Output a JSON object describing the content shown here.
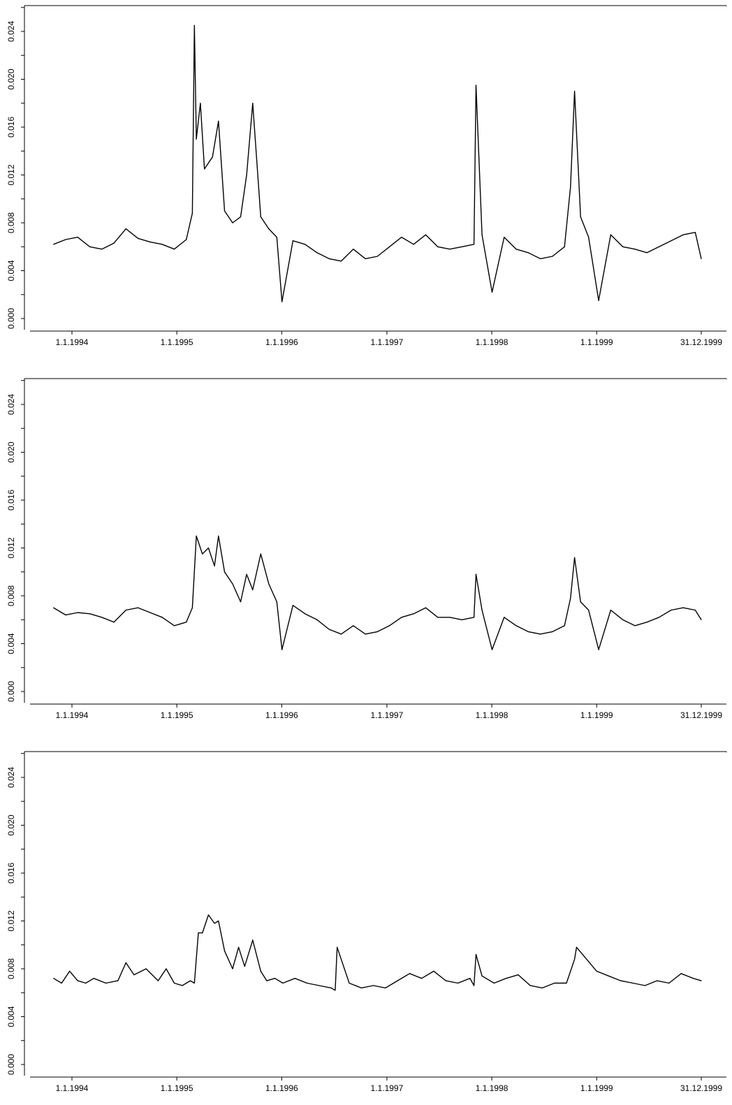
{
  "chart_data": [
    {
      "type": "line",
      "title": "",
      "xlabel": "",
      "ylabel": "",
      "ylim": [
        0,
        0.026
      ],
      "grid": false,
      "x_ticks": [
        "1.1.1994",
        "1.1.1995",
        "1.1.1996",
        "1.1.1997",
        "1.1.1998",
        "1.1.1999",
        "31.12.1999"
      ],
      "y_ticks": [
        "0.000",
        "0.004",
        "0.008",
        "0.012",
        "0.016",
        "0.020",
        "0.024"
      ],
      "series": [
        {
          "x": [
            "1993-10-29",
            "1993-12-10",
            "1994-01-21",
            "1994-03-04",
            "1994-04-15",
            "1994-05-27",
            "1994-07-08",
            "1994-08-19",
            "1994-09-30",
            "1994-11-11",
            "1994-12-23",
            "1995-02-03",
            "1995-02-24",
            "1995-03-03",
            "1995-03-10",
            "1995-03-24",
            "1995-04-07",
            "1995-05-05",
            "1995-05-26",
            "1995-06-16",
            "1995-07-14",
            "1995-08-11",
            "1995-09-01",
            "1995-09-22",
            "1995-10-20",
            "1995-11-17",
            "1995-12-15",
            "1996-01-02",
            "1996-02-09",
            "1996-03-22",
            "1996-05-03",
            "1996-06-14",
            "1996-07-26",
            "1996-09-06",
            "1996-10-18",
            "1996-11-29",
            "1997-01-10",
            "1997-02-21",
            "1997-04-04",
            "1997-05-16",
            "1997-06-27",
            "1997-08-08",
            "1997-09-19",
            "1997-10-31",
            "1997-11-07",
            "1997-11-28",
            "1998-01-02",
            "1998-02-13",
            "1998-03-27",
            "1998-05-08",
            "1998-06-19",
            "1998-07-31",
            "1998-09-11",
            "1998-10-02",
            "1998-10-16",
            "1998-11-06",
            "1998-12-04",
            "1999-01-08",
            "1999-02-19",
            "1999-04-02",
            "1999-05-14",
            "1999-06-25",
            "1999-08-06",
            "1999-09-17",
            "1999-10-29",
            "1999-12-10",
            "1999-12-31"
          ],
          "values": [
            0.0062,
            0.0066,
            0.0068,
            0.006,
            0.0058,
            0.0063,
            0.0075,
            0.0067,
            0.0064,
            0.0062,
            0.0058,
            0.0066,
            0.0088,
            0.0245,
            0.015,
            0.018,
            0.0125,
            0.0135,
            0.0165,
            0.009,
            0.008,
            0.0085,
            0.012,
            0.018,
            0.0085,
            0.0075,
            0.0068,
            0.0014,
            0.0065,
            0.0062,
            0.0055,
            0.005,
            0.0048,
            0.0058,
            0.005,
            0.0052,
            0.006,
            0.0068,
            0.0062,
            0.007,
            0.006,
            0.0058,
            0.006,
            0.0062,
            0.0195,
            0.007,
            0.0022,
            0.0068,
            0.0058,
            0.0055,
            0.005,
            0.0052,
            0.006,
            0.011,
            0.019,
            0.0085,
            0.0068,
            0.0015,
            0.007,
            0.006,
            0.0058,
            0.0055,
            0.006,
            0.0065,
            0.007,
            0.0072,
            0.005
          ]
        }
      ]
    },
    {
      "type": "line",
      "title": "",
      "xlabel": "",
      "ylabel": "",
      "ylim": [
        0,
        0.026
      ],
      "grid": false,
      "x_ticks": [
        "1.1.1994",
        "1.1.1995",
        "1.1.1996",
        "1.1.1997",
        "1.1.1998",
        "1.1.1999",
        "31.12.1999"
      ],
      "y_ticks": [
        "0.000",
        "0.004",
        "0.008",
        "0.012",
        "0.016",
        "0.020",
        "0.024"
      ],
      "series": [
        {
          "x": [
            "1993-10-29",
            "1993-12-10",
            "1994-01-21",
            "1994-03-04",
            "1994-04-15",
            "1994-05-27",
            "1994-07-08",
            "1994-08-19",
            "1994-09-30",
            "1994-11-11",
            "1994-12-23",
            "1995-02-03",
            "1995-02-24",
            "1995-03-10",
            "1995-03-31",
            "1995-04-21",
            "1995-05-12",
            "1995-05-26",
            "1995-06-16",
            "1995-07-14",
            "1995-08-11",
            "1995-09-01",
            "1995-09-22",
            "1995-10-20",
            "1995-11-17",
            "1995-12-15",
            "1996-01-02",
            "1996-02-09",
            "1996-03-22",
            "1996-05-03",
            "1996-06-14",
            "1996-07-26",
            "1996-09-06",
            "1996-10-18",
            "1996-11-29",
            "1997-01-10",
            "1997-02-21",
            "1997-04-04",
            "1997-05-16",
            "1997-06-27",
            "1997-08-08",
            "1997-09-19",
            "1997-10-31",
            "1997-11-07",
            "1997-11-28",
            "1998-01-02",
            "1998-02-13",
            "1998-03-27",
            "1998-05-08",
            "1998-06-19",
            "1998-07-31",
            "1998-09-11",
            "1998-10-02",
            "1998-10-16",
            "1998-11-06",
            "1998-12-04",
            "1999-01-08",
            "1999-02-19",
            "1999-04-02",
            "1999-05-14",
            "1999-06-25",
            "1999-08-06",
            "1999-09-17",
            "1999-10-29",
            "1999-12-10",
            "1999-12-31"
          ],
          "values": [
            0.007,
            0.0064,
            0.0066,
            0.0065,
            0.0062,
            0.0058,
            0.0068,
            0.007,
            0.0066,
            0.0062,
            0.0055,
            0.0058,
            0.007,
            0.013,
            0.0115,
            0.012,
            0.0105,
            0.013,
            0.01,
            0.009,
            0.0075,
            0.0098,
            0.0085,
            0.0115,
            0.009,
            0.0075,
            0.0035,
            0.0072,
            0.0065,
            0.006,
            0.0052,
            0.0048,
            0.0055,
            0.0048,
            0.005,
            0.0055,
            0.0062,
            0.0065,
            0.007,
            0.0062,
            0.0062,
            0.006,
            0.0062,
            0.0098,
            0.0068,
            0.0035,
            0.0062,
            0.0055,
            0.005,
            0.0048,
            0.005,
            0.0055,
            0.0078,
            0.0112,
            0.0075,
            0.0068,
            0.0035,
            0.0068,
            0.006,
            0.0055,
            0.0058,
            0.0062,
            0.0068,
            0.007,
            0.0068,
            0.006
          ]
        }
      ]
    },
    {
      "type": "line",
      "title": "",
      "xlabel": "",
      "ylabel": "",
      "ylim": [
        0,
        0.026
      ],
      "grid": false,
      "x_ticks": [
        "1.1.1994",
        "1.1.1995",
        "1.1.1996",
        "1.1.1997",
        "1.1.1998",
        "1.1.1999",
        "31.12.1999"
      ],
      "y_ticks": [
        "0.000",
        "0.004",
        "0.008",
        "0.012",
        "0.016",
        "0.020",
        "0.024"
      ],
      "series": [
        {
          "x": [
            "1993-10-29",
            "1993-11-26",
            "1993-12-24",
            "1994-01-21",
            "1994-02-18",
            "1994-03-18",
            "1994-04-29",
            "1994-06-10",
            "1994-07-08",
            "1994-08-05",
            "1994-09-16",
            "1994-10-28",
            "1994-11-25",
            "1994-12-23",
            "1995-01-20",
            "1995-02-17",
            "1995-03-03",
            "1995-03-17",
            "1995-03-31",
            "1995-04-21",
            "1995-05-12",
            "1995-05-26",
            "1995-06-16",
            "1995-07-14",
            "1995-08-04",
            "1995-08-25",
            "1995-09-22",
            "1995-10-20",
            "1995-11-10",
            "1995-12-08",
            "1996-01-05",
            "1996-02-16",
            "1996-03-29",
            "1996-05-10",
            "1996-06-21",
            "1996-07-05",
            "1996-07-12",
            "1996-08-23",
            "1996-10-04",
            "1996-11-15",
            "1996-12-27",
            "1997-02-07",
            "1997-03-21",
            "1997-05-02",
            "1997-06-13",
            "1997-07-25",
            "1997-09-05",
            "1997-10-17",
            "1997-10-31",
            "1997-11-07",
            "1997-11-28",
            "1998-01-09",
            "1998-02-20",
            "1998-04-03",
            "1998-05-15",
            "1998-06-26",
            "1998-08-07",
            "1998-09-18",
            "1998-10-16",
            "1998-10-23",
            "1998-11-20",
            "1999-01-01",
            "1999-02-12",
            "1999-03-26",
            "1999-05-07",
            "1999-06-18",
            "1999-07-30",
            "1999-09-10",
            "1999-10-22",
            "1999-12-03",
            "1999-12-31"
          ],
          "values": [
            0.0072,
            0.0068,
            0.0078,
            0.007,
            0.0068,
            0.0072,
            0.0068,
            0.007,
            0.0085,
            0.0075,
            0.008,
            0.007,
            0.008,
            0.0068,
            0.0066,
            0.007,
            0.0068,
            0.011,
            0.011,
            0.0125,
            0.0118,
            0.012,
            0.0095,
            0.008,
            0.0098,
            0.0082,
            0.0104,
            0.0078,
            0.007,
            0.0072,
            0.0068,
            0.0072,
            0.0068,
            0.0066,
            0.0064,
            0.0062,
            0.0098,
            0.0068,
            0.0064,
            0.0066,
            0.0064,
            0.007,
            0.0076,
            0.0072,
            0.0078,
            0.007,
            0.0068,
            0.0072,
            0.0066,
            0.0092,
            0.0074,
            0.0068,
            0.0072,
            0.0075,
            0.0066,
            0.0064,
            0.0068,
            0.0068,
            0.0088,
            0.0098,
            0.009,
            0.0078,
            0.0074,
            0.007,
            0.0068,
            0.0066,
            0.007,
            0.0068,
            0.0076,
            0.0072,
            0.007
          ]
        }
      ]
    }
  ]
}
